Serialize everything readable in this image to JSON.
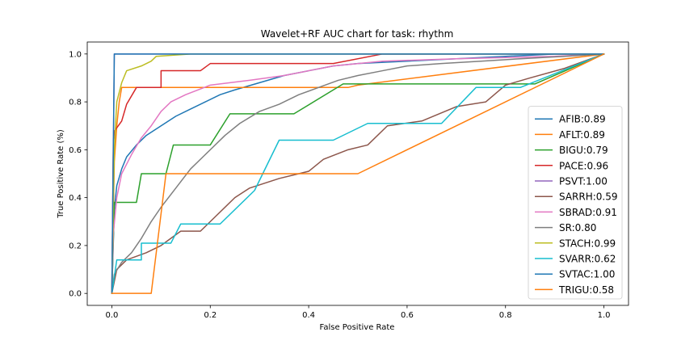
{
  "chart_data": {
    "type": "line",
    "title": "Wavelet+RF AUC chart for task: rhythm",
    "xlabel": "False Positive Rate",
    "ylabel": "True Positive Rate (%)",
    "xlim": [
      -0.05,
      1.05
    ],
    "ylim": [
      -0.05,
      1.05
    ],
    "xticks": [
      "0.0",
      "0.2",
      "0.4",
      "0.6",
      "0.8",
      "1.0"
    ],
    "yticks": [
      "0.0",
      "0.2",
      "0.4",
      "0.6",
      "0.8",
      "1.0"
    ],
    "grid": false,
    "legend_position": "lower right",
    "series": [
      {
        "name": "AFIB:0.89",
        "color": "#1f77b4",
        "points": [
          [
            0,
            0
          ],
          [
            0.005,
            0.35
          ],
          [
            0.01,
            0.45
          ],
          [
            0.02,
            0.52
          ],
          [
            0.03,
            0.57
          ],
          [
            0.05,
            0.62
          ],
          [
            0.07,
            0.66
          ],
          [
            0.1,
            0.7
          ],
          [
            0.13,
            0.74
          ],
          [
            0.16,
            0.77
          ],
          [
            0.19,
            0.8
          ],
          [
            0.22,
            0.83
          ],
          [
            0.25,
            0.85
          ],
          [
            0.3,
            0.88
          ],
          [
            0.35,
            0.91
          ],
          [
            0.4,
            0.93
          ],
          [
            0.45,
            0.95
          ],
          [
            0.5,
            0.96
          ],
          [
            0.6,
            0.97
          ],
          [
            0.7,
            0.98
          ],
          [
            0.8,
            0.99
          ],
          [
            0.9,
            1.0
          ],
          [
            1.0,
            1.0
          ]
        ]
      },
      {
        "name": "AFLT:0.89",
        "color": "#ff7f0e",
        "points": [
          [
            0,
            0
          ],
          [
            0.005,
            0.55
          ],
          [
            0.01,
            0.7
          ],
          [
            0.015,
            0.8
          ],
          [
            0.02,
            0.86
          ],
          [
            0.48,
            0.86
          ],
          [
            0.5,
            0.87
          ],
          [
            1.0,
            1.0
          ]
        ]
      },
      {
        "name": "BIGU:0.79",
        "color": "#2ca02c",
        "points": [
          [
            0,
            0
          ],
          [
            0.005,
            0.38
          ],
          [
            0.05,
            0.38
          ],
          [
            0.06,
            0.5
          ],
          [
            0.11,
            0.5
          ],
          [
            0.125,
            0.62
          ],
          [
            0.2,
            0.62
          ],
          [
            0.24,
            0.75
          ],
          [
            0.37,
            0.75
          ],
          [
            0.47,
            0.875
          ],
          [
            0.86,
            0.875
          ],
          [
            1.0,
            1.0
          ]
        ]
      },
      {
        "name": "PACE:0.96",
        "color": "#d62728",
        "points": [
          [
            0,
            0
          ],
          [
            0.003,
            0.64
          ],
          [
            0.006,
            0.68
          ],
          [
            0.02,
            0.72
          ],
          [
            0.03,
            0.79
          ],
          [
            0.05,
            0.86
          ],
          [
            0.1,
            0.86
          ],
          [
            0.1,
            0.93
          ],
          [
            0.18,
            0.93
          ],
          [
            0.2,
            0.96
          ],
          [
            0.45,
            0.96
          ],
          [
            0.55,
            1.0
          ],
          [
            1.0,
            1.0
          ]
        ]
      },
      {
        "name": "PSVT:1.00",
        "color": "#9467bd",
        "points": [
          [
            0,
            0
          ],
          [
            0.005,
            1.0
          ],
          [
            1.0,
            1.0
          ]
        ]
      },
      {
        "name": "SARRH:0.59",
        "color": "#8c564b",
        "points": [
          [
            0,
            0
          ],
          [
            0.01,
            0.1
          ],
          [
            0.03,
            0.14
          ],
          [
            0.07,
            0.17
          ],
          [
            0.1,
            0.2
          ],
          [
            0.14,
            0.26
          ],
          [
            0.18,
            0.26
          ],
          [
            0.21,
            0.32
          ],
          [
            0.25,
            0.4
          ],
          [
            0.28,
            0.44
          ],
          [
            0.34,
            0.48
          ],
          [
            0.4,
            0.51
          ],
          [
            0.43,
            0.56
          ],
          [
            0.48,
            0.6
          ],
          [
            0.52,
            0.62
          ],
          [
            0.56,
            0.7
          ],
          [
            0.63,
            0.72
          ],
          [
            0.7,
            0.78
          ],
          [
            0.76,
            0.8
          ],
          [
            0.8,
            0.87
          ],
          [
            0.85,
            0.9
          ],
          [
            0.92,
            0.94
          ],
          [
            1.0,
            1.0
          ]
        ]
      },
      {
        "name": "SBRAD:0.91",
        "color": "#e377c2",
        "points": [
          [
            0,
            0
          ],
          [
            0.003,
            0.25
          ],
          [
            0.01,
            0.4
          ],
          [
            0.02,
            0.5
          ],
          [
            0.04,
            0.58
          ],
          [
            0.06,
            0.65
          ],
          [
            0.08,
            0.7
          ],
          [
            0.1,
            0.76
          ],
          [
            0.12,
            0.8
          ],
          [
            0.15,
            0.83
          ],
          [
            0.2,
            0.87
          ],
          [
            0.28,
            0.89
          ],
          [
            0.35,
            0.91
          ],
          [
            0.45,
            0.95
          ],
          [
            0.55,
            0.97
          ],
          [
            0.7,
            0.98
          ],
          [
            0.9,
            0.99
          ],
          [
            1.0,
            1.0
          ]
        ]
      },
      {
        "name": "SR:0.80",
        "color": "#7f7f7f",
        "points": [
          [
            0,
            0
          ],
          [
            0.005,
            0.08
          ],
          [
            0.02,
            0.13
          ],
          [
            0.04,
            0.17
          ],
          [
            0.06,
            0.23
          ],
          [
            0.08,
            0.3
          ],
          [
            0.1,
            0.36
          ],
          [
            0.13,
            0.44
          ],
          [
            0.16,
            0.52
          ],
          [
            0.2,
            0.6
          ],
          [
            0.23,
            0.66
          ],
          [
            0.26,
            0.71
          ],
          [
            0.3,
            0.76
          ],
          [
            0.34,
            0.79
          ],
          [
            0.38,
            0.83
          ],
          [
            0.42,
            0.86
          ],
          [
            0.46,
            0.89
          ],
          [
            0.5,
            0.91
          ],
          [
            0.55,
            0.93
          ],
          [
            0.6,
            0.95
          ],
          [
            0.67,
            0.96
          ],
          [
            0.75,
            0.97
          ],
          [
            0.83,
            0.98
          ],
          [
            0.92,
            0.99
          ],
          [
            1.0,
            1.0
          ]
        ]
      },
      {
        "name": "STACH:0.99",
        "color": "#bcbd22",
        "points": [
          [
            0,
            0
          ],
          [
            0.005,
            0.6
          ],
          [
            0.01,
            0.8
          ],
          [
            0.02,
            0.88
          ],
          [
            0.03,
            0.93
          ],
          [
            0.06,
            0.95
          ],
          [
            0.08,
            0.97
          ],
          [
            0.09,
            0.99
          ],
          [
            0.16,
            1.0
          ],
          [
            1.0,
            1.0
          ]
        ]
      },
      {
        "name": "SVARR:0.62",
        "color": "#17becf",
        "points": [
          [
            0,
            0
          ],
          [
            0.01,
            0.14
          ],
          [
            0.06,
            0.14
          ],
          [
            0.06,
            0.21
          ],
          [
            0.12,
            0.21
          ],
          [
            0.14,
            0.29
          ],
          [
            0.22,
            0.29
          ],
          [
            0.29,
            0.43
          ],
          [
            0.34,
            0.64
          ],
          [
            0.45,
            0.64
          ],
          [
            0.52,
            0.71
          ],
          [
            0.67,
            0.71
          ],
          [
            0.74,
            0.86
          ],
          [
            0.83,
            0.86
          ],
          [
            1.0,
            1.0
          ]
        ]
      },
      {
        "name": "SVTAC:1.00",
        "color": "#1f77b4",
        "points": [
          [
            0,
            0
          ],
          [
            0.005,
            1.0
          ],
          [
            1.0,
            1.0
          ]
        ]
      },
      {
        "name": "TRIGU:0.58",
        "color": "#ff7f0e",
        "points": [
          [
            0,
            0
          ],
          [
            0.08,
            0.0
          ],
          [
            0.11,
            0.5
          ],
          [
            0.5,
            0.5
          ],
          [
            1.0,
            1.0
          ]
        ]
      }
    ]
  }
}
